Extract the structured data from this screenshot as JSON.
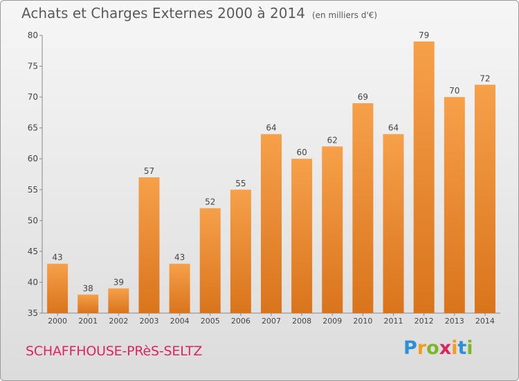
{
  "header": {
    "title": "Achats et Charges Externes 2000 à 2014",
    "subtitle": "(en milliers d'€)"
  },
  "footer": {
    "location": "SCHAFFHOUSE-PRèS-SELTZ",
    "logo_letters": [
      "P",
      "r",
      "o",
      "x",
      "i",
      "t",
      "i"
    ],
    "logo_colors": [
      "#2e8fd6",
      "#f39c1f",
      "#7ab829",
      "#e0245e",
      "#f39c1f",
      "#2e8fd6",
      "#7ab829"
    ]
  },
  "colors": {
    "bar_top": "#f6a04a",
    "bar_bottom": "#d9741c",
    "grid": "#c8c8c8",
    "text": "#444444"
  },
  "chart_data": {
    "type": "bar",
    "title": "Achats et Charges Externes 2000 à 2014",
    "categories": [
      "2000",
      "2001",
      "2002",
      "2003",
      "2004",
      "2005",
      "2006",
      "2007",
      "2008",
      "2009",
      "2010",
      "2011",
      "2012",
      "2013",
      "2014"
    ],
    "values": [
      43,
      38,
      39,
      57,
      43,
      52,
      55,
      64,
      60,
      62,
      69,
      64,
      79,
      70,
      72
    ],
    "yticks": [
      35,
      40,
      45,
      50,
      55,
      60,
      65,
      70,
      75,
      80
    ],
    "ylim": [
      35,
      80
    ],
    "grid": false
  }
}
